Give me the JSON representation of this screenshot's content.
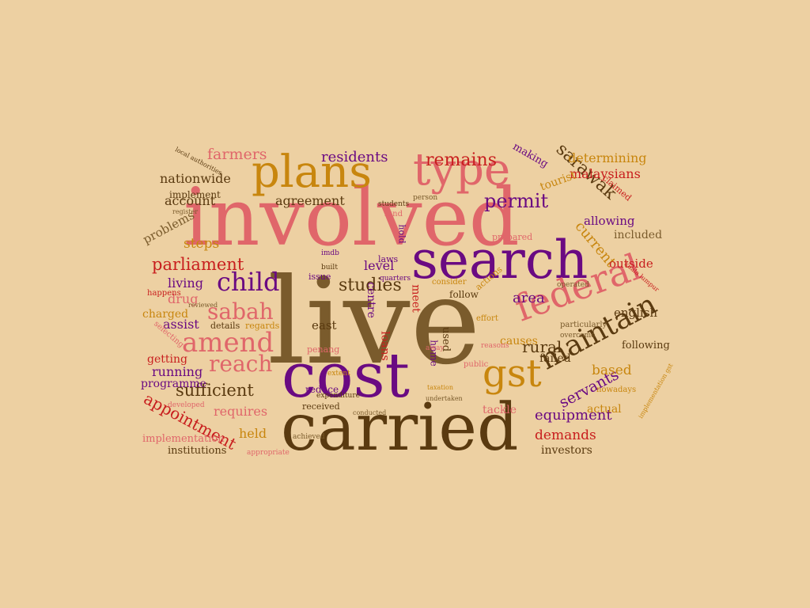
{
  "words": [
    {
      "text": "live",
      "color": "#7a5b2c"
    },
    {
      "text": "involved",
      "color": "#e0666a"
    },
    {
      "text": "cost",
      "color": "#6a0a82"
    },
    {
      "text": "carried",
      "color": "#5a3a10"
    },
    {
      "text": "search",
      "color": "#6a0a82"
    },
    {
      "text": "plans",
      "color": "#c8860e"
    },
    {
      "text": "type",
      "color": "#e0666a"
    },
    {
      "text": "federal",
      "color": "#e0666a"
    },
    {
      "text": "gst",
      "color": "#c8860e"
    },
    {
      "text": "maintain",
      "color": "#5a3a10"
    },
    {
      "text": "amend",
      "color": "#e0666a"
    },
    {
      "text": "child",
      "color": "#6a0a82"
    },
    {
      "text": "sabah",
      "color": "#e0666a"
    },
    {
      "text": "reach",
      "color": "#e0666a"
    },
    {
      "text": "parliament",
      "color": "#c81e1e"
    },
    {
      "text": "sufficient",
      "color": "#5a3a10"
    },
    {
      "text": "appointment",
      "color": "#c81e1e"
    },
    {
      "text": "sarawak",
      "color": "#5a3a10"
    },
    {
      "text": "permit",
      "color": "#6a0a82"
    },
    {
      "text": "remains",
      "color": "#c81e1e"
    },
    {
      "text": "residents",
      "color": "#6a0a82"
    },
    {
      "text": "farmers",
      "color": "#e0666a"
    },
    {
      "text": "studies",
      "color": "#5a3a10"
    },
    {
      "text": "current",
      "color": "#c8860e"
    },
    {
      "text": "rural",
      "color": "#5a3a10"
    },
    {
      "text": "equipment",
      "color": "#6a0a82"
    },
    {
      "text": "servants",
      "color": "#6a0a82"
    },
    {
      "text": "demands",
      "color": "#c81e1e"
    },
    {
      "text": "based",
      "color": "#c8860e"
    },
    {
      "text": "nationwide",
      "color": "#5a3a10"
    },
    {
      "text": "agreement",
      "color": "#5a3a10"
    },
    {
      "text": "determining",
      "color": "#c8860e"
    },
    {
      "text": "malaysians",
      "color": "#c81e1e"
    },
    {
      "text": "account",
      "color": "#5a3a10"
    },
    {
      "text": "level",
      "color": "#6a0a82"
    },
    {
      "text": "area",
      "color": "#6a0a82"
    },
    {
      "text": "english",
      "color": "#5a3a10"
    },
    {
      "text": "outside",
      "color": "#c81e1e"
    },
    {
      "text": "allowing",
      "color": "#6a0a82"
    },
    {
      "text": "included",
      "color": "#7a5b2c"
    },
    {
      "text": "steps",
      "color": "#c8860e"
    },
    {
      "text": "problems",
      "color": "#7a5b2c"
    },
    {
      "text": "living",
      "color": "#6a0a82"
    },
    {
      "text": "drug",
      "color": "#e0666a"
    },
    {
      "text": "assist",
      "color": "#6a0a82"
    },
    {
      "text": "charged",
      "color": "#c8860e"
    },
    {
      "text": "getting",
      "color": "#c81e1e"
    },
    {
      "text": "running",
      "color": "#6a0a82"
    },
    {
      "text": "programme",
      "color": "#6a0a82"
    },
    {
      "text": "requires",
      "color": "#e0666a"
    },
    {
      "text": "held",
      "color": "#c8860e"
    },
    {
      "text": "implementation",
      "color": "#e0666a"
    },
    {
      "text": "institutions",
      "color": "#5a3a10"
    },
    {
      "text": "investors",
      "color": "#5a3a10"
    },
    {
      "text": "tackle",
      "color": "#e0666a"
    },
    {
      "text": "actual",
      "color": "#c8860e"
    },
    {
      "text": "failed",
      "color": "#5a3a10"
    },
    {
      "text": "following",
      "color": "#5a3a10"
    },
    {
      "text": "tourist",
      "color": "#c8860e"
    },
    {
      "text": "making",
      "color": "#6a0a82"
    },
    {
      "text": "causes",
      "color": "#c8860e"
    },
    {
      "text": "centre",
      "color": "#6a0a82"
    },
    {
      "text": "east",
      "color": "#5a3a10"
    },
    {
      "text": "loans",
      "color": "#c81e1e"
    },
    {
      "text": "implement",
      "color": "#5a3a10"
    },
    {
      "text": "happens",
      "color": "#c81e1e"
    },
    {
      "text": "details",
      "color": "#5a3a10"
    },
    {
      "text": "regards",
      "color": "#c8860e"
    },
    {
      "text": "reduce",
      "color": "#6a0a82"
    },
    {
      "text": "received",
      "color": "#5a3a10"
    },
    {
      "text": "issue",
      "color": "#6a0a82"
    },
    {
      "text": "built",
      "color": "#5a3a10"
    },
    {
      "text": "imdb",
      "color": "#6a0a82"
    },
    {
      "text": "laws",
      "color": "#6a0a82"
    },
    {
      "text": "follow",
      "color": "#5a3a10"
    },
    {
      "text": "consider",
      "color": "#c8860e"
    },
    {
      "text": "effort",
      "color": "#c8860e"
    },
    {
      "text": "prepared",
      "color": "#e0666a"
    },
    {
      "text": "operated",
      "color": "#7a5b2c"
    },
    {
      "text": "particularly",
      "color": "#7a5b2c"
    },
    {
      "text": "overcome",
      "color": "#7a5b2c"
    },
    {
      "text": "reasons",
      "color": "#e0666a"
    },
    {
      "text": "public",
      "color": "#e0666a"
    },
    {
      "text": "fund",
      "color": "#e0666a"
    },
    {
      "text": "hold",
      "color": "#6a0a82"
    },
    {
      "text": "meet",
      "color": "#c81e1e"
    },
    {
      "text": "used",
      "color": "#5a3a10"
    },
    {
      "text": "home",
      "color": "#6a0a82"
    },
    {
      "text": "actions",
      "color": "#c8860e"
    },
    {
      "text": "person",
      "color": "#7a5b2c"
    },
    {
      "text": "students",
      "color": "#5a3a10"
    },
    {
      "text": "claimed",
      "color": "#c81e1e"
    },
    {
      "text": "local authorities",
      "color": "#5a3a10"
    },
    {
      "text": "register",
      "color": "#7a5b2c"
    },
    {
      "text": "reviewed",
      "color": "#7a5b2c"
    },
    {
      "text": "selecting",
      "color": "#e0666a"
    },
    {
      "text": "developed",
      "color": "#e0666a"
    },
    {
      "text": "appropriate",
      "color": "#e0666a"
    },
    {
      "text": "achieved",
      "color": "#7a5b2c"
    },
    {
      "text": "penang",
      "color": "#e0666a"
    },
    {
      "text": "nowadays",
      "color": "#c8860e"
    },
    {
      "text": "kuala lumpur",
      "color": "#c81e1e"
    },
    {
      "text": "implementation gst",
      "color": "#c8860e"
    },
    {
      "text": "quarters",
      "color": "#6a0a82"
    },
    {
      "text": "extent",
      "color": "#c8860e"
    },
    {
      "text": "expenditure",
      "color": "#5a3a10"
    },
    {
      "text": "undertaken",
      "color": "#7a5b2c"
    },
    {
      "text": "conducted",
      "color": "#7a5b2c"
    },
    {
      "text": "away",
      "color": "#e0666a"
    },
    {
      "text": "taxation",
      "color": "#c8860e"
    }
  ]
}
